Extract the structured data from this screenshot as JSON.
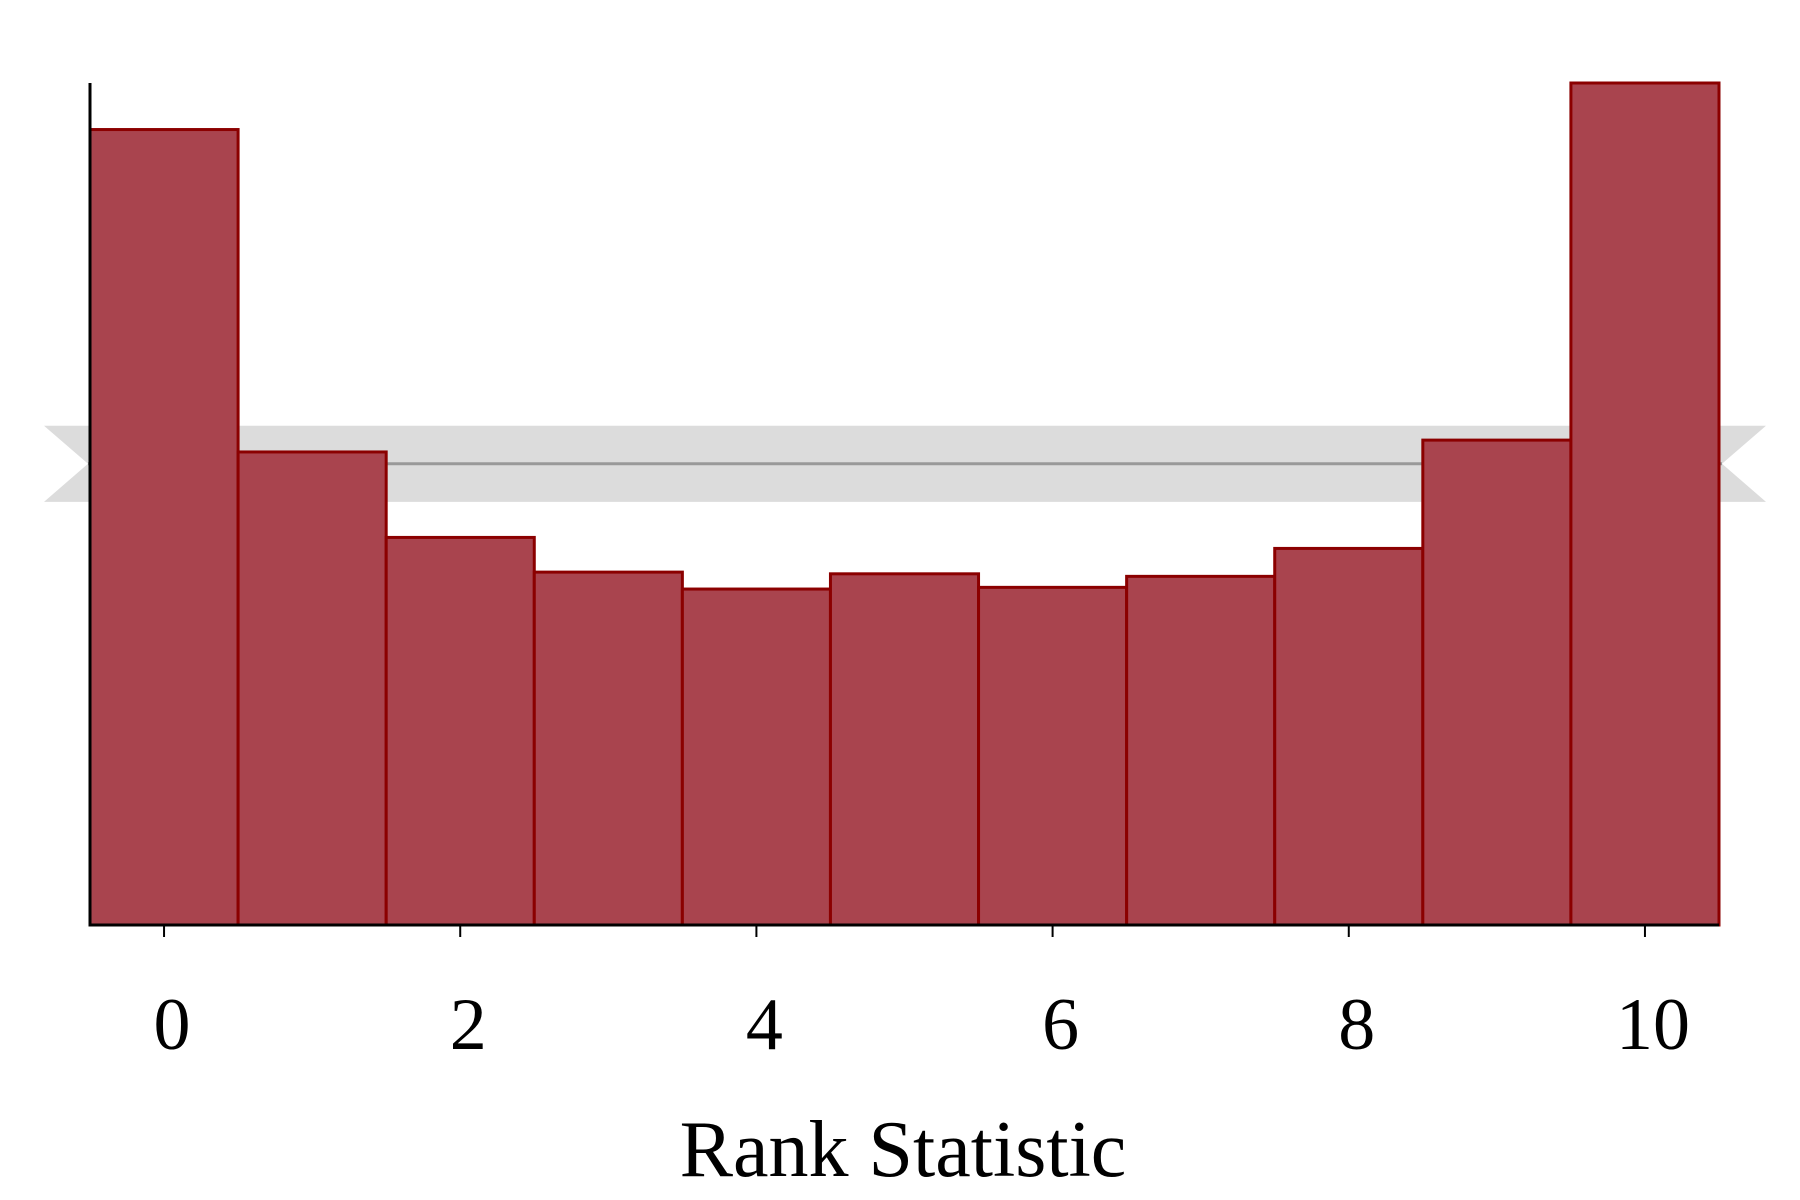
{
  "chart_data": {
    "type": "bar",
    "title": "",
    "xlabel": "Rank Statistic",
    "ylabel": "",
    "bins": [
      0,
      1,
      2,
      3,
      4,
      5,
      6,
      7,
      8,
      9,
      10
    ],
    "values": [
      940,
      559,
      458,
      417,
      397,
      415,
      399,
      412,
      445,
      573,
      995
    ],
    "xlim": [
      -0.5,
      10.5
    ],
    "ylim": [
      0,
      995
    ],
    "xticks": [
      0,
      2,
      4,
      6,
      8,
      10
    ],
    "xtick_labels": [
      "0",
      "2",
      "4",
      "6",
      "8",
      "10"
    ],
    "show_y_ticks": false,
    "grid": false,
    "reference_band": {
      "center": 545,
      "low": 500,
      "high": 590
    },
    "colors": {
      "bar_fill": "#a9444e",
      "bar_edge": "#8b0000",
      "band": "#dcdcdc",
      "band_line": "#999999",
      "axis": "#000000"
    }
  }
}
